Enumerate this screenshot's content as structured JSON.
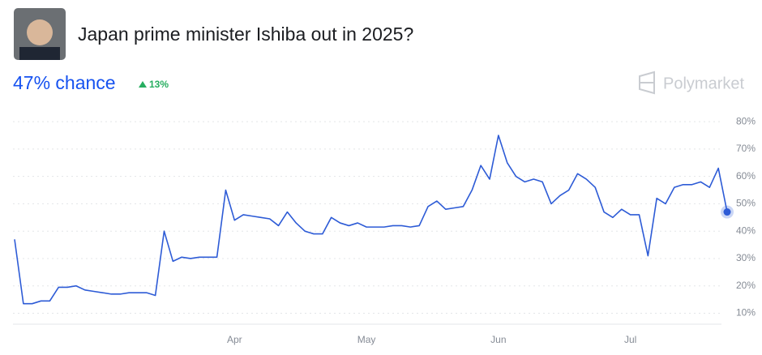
{
  "header": {
    "title": "Japan prime minister Ishiba out in 2025?",
    "chance": "47% chance",
    "change": "13%",
    "brand": "Polymarket"
  },
  "chart_data": {
    "type": "line",
    "categories": [
      null,
      null,
      null,
      null,
      null,
      null,
      null,
      null,
      null,
      null,
      null,
      null,
      null,
      null,
      null,
      null,
      null,
      null,
      null,
      null,
      null,
      null,
      null,
      null,
      null,
      "Apr",
      null,
      null,
      null,
      null,
      null,
      null,
      null,
      null,
      null,
      null,
      null,
      null,
      null,
      null,
      "May",
      null,
      null,
      null,
      null,
      null,
      null,
      null,
      null,
      null,
      null,
      null,
      null,
      null,
      null,
      "Jun",
      null,
      null,
      null,
      null,
      null,
      null,
      null,
      null,
      null,
      null,
      null,
      null,
      null,
      null,
      "Jul",
      null,
      null,
      null,
      null,
      null,
      null,
      null,
      null,
      null,
      null,
      null
    ],
    "series": [
      {
        "color": "#2d5bd6",
        "values": [
          37,
          13.5,
          13.5,
          14.5,
          14.5,
          19.5,
          19.5,
          20,
          18.5,
          18,
          17.5,
          17,
          17,
          17.5,
          17.5,
          17.5,
          16.5,
          40,
          29,
          30.5,
          30,
          30.5,
          30.5,
          30.5,
          55,
          44,
          46,
          45.5,
          45,
          44.5,
          42,
          47,
          43,
          40,
          39,
          39,
          45,
          43,
          42,
          43,
          41.5,
          41.5,
          41.5,
          42,
          42,
          41.5,
          42,
          49,
          51,
          48,
          48.5,
          49,
          55,
          64,
          59,
          75,
          65,
          60,
          58,
          59,
          58,
          50,
          53,
          55,
          61,
          59,
          56,
          47,
          45,
          48,
          46,
          46,
          31,
          52,
          50,
          56,
          57,
          57,
          58,
          56,
          63,
          47
        ]
      }
    ],
    "ylim": [
      6,
      83
    ],
    "yticks": [
      {
        "value": 10,
        "label": "10%"
      },
      {
        "value": 20,
        "label": "20%"
      },
      {
        "value": 30,
        "label": "30%"
      },
      {
        "value": 40,
        "label": "40%"
      },
      {
        "value": 50,
        "label": "50%"
      },
      {
        "value": 60,
        "label": "60%"
      },
      {
        "value": 70,
        "label": "70%"
      },
      {
        "value": 80,
        "label": "80%"
      }
    ],
    "grid": true
  }
}
